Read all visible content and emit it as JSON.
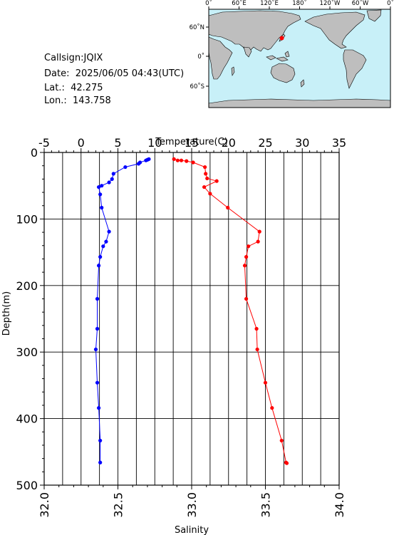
{
  "info": {
    "callsign": "Callsign:JQIX",
    "date": "Date:  2025/06/05 04:43(UTC)",
    "lat": "Lat.:  42.275",
    "lon": "Lon.:  143.758"
  },
  "map": {
    "top_ticks": [
      "0˚",
      "60˚E",
      "120˚E",
      "180˚",
      "120˚W",
      "60˚W",
      "0˚"
    ],
    "left_ticks": [
      "60˚N",
      "0˚",
      "60˚S"
    ],
    "colors": {
      "ocean": "#c8f0f8",
      "land": "#bebebe",
      "marker": "#ff0000"
    }
  },
  "chart_data": {
    "type": "line",
    "top_axis_label": "Temperature(C)",
    "bottom_axis_label": "Salinity",
    "ylabel": "Depth(m)",
    "temperature_range": [
      -5,
      35
    ],
    "salinity_range": [
      32.0,
      34.0
    ],
    "depth_range": [
      0,
      500
    ],
    "temperature_ticks": [
      "-5",
      "0",
      "5",
      "10",
      "15",
      "20",
      "25",
      "30",
      "35"
    ],
    "salinity_ticks": [
      "32.0",
      "32.5",
      "33.0",
      "33.5",
      "34.0"
    ],
    "depth_ticks": [
      "0",
      "100",
      "200",
      "300",
      "400",
      "500"
    ],
    "grid": true,
    "series": [
      {
        "name": "Temperature",
        "color": "#ff0000",
        "points": [
          [
            12.6,
            10
          ],
          [
            13.1,
            12
          ],
          [
            13.6,
            12
          ],
          [
            14.3,
            13
          ],
          [
            15.2,
            15
          ],
          [
            16.8,
            22
          ],
          [
            16.9,
            32
          ],
          [
            17.1,
            39
          ],
          [
            18.4,
            43
          ],
          [
            16.7,
            52
          ],
          [
            17.5,
            62
          ],
          [
            19.9,
            83
          ],
          [
            24.2,
            119
          ],
          [
            24.0,
            134
          ],
          [
            22.7,
            141
          ],
          [
            22.4,
            157
          ],
          [
            22.2,
            170
          ],
          [
            22.4,
            220
          ],
          [
            23.8,
            265
          ],
          [
            23.9,
            296
          ],
          [
            25.0,
            346
          ],
          [
            25.9,
            384
          ],
          [
            27.2,
            433
          ],
          [
            27.8,
            466
          ],
          [
            27.9,
            467
          ]
        ]
      },
      {
        "name": "Salinity",
        "color": "#0000ff",
        "points": [
          [
            32.71,
            10
          ],
          [
            32.7,
            11
          ],
          [
            32.69,
            12
          ],
          [
            32.65,
            15
          ],
          [
            32.64,
            17
          ],
          [
            32.55,
            22
          ],
          [
            32.47,
            32
          ],
          [
            32.46,
            40
          ],
          [
            32.44,
            45
          ],
          [
            32.39,
            50
          ],
          [
            32.37,
            52
          ],
          [
            32.38,
            63
          ],
          [
            32.39,
            83
          ],
          [
            32.44,
            119
          ],
          [
            32.42,
            134
          ],
          [
            32.4,
            141
          ],
          [
            32.38,
            157
          ],
          [
            32.37,
            170
          ],
          [
            32.36,
            220
          ],
          [
            32.36,
            265
          ],
          [
            32.35,
            296
          ],
          [
            32.36,
            346
          ],
          [
            32.37,
            384
          ],
          [
            32.38,
            433
          ],
          [
            32.38,
            466
          ]
        ]
      }
    ]
  }
}
